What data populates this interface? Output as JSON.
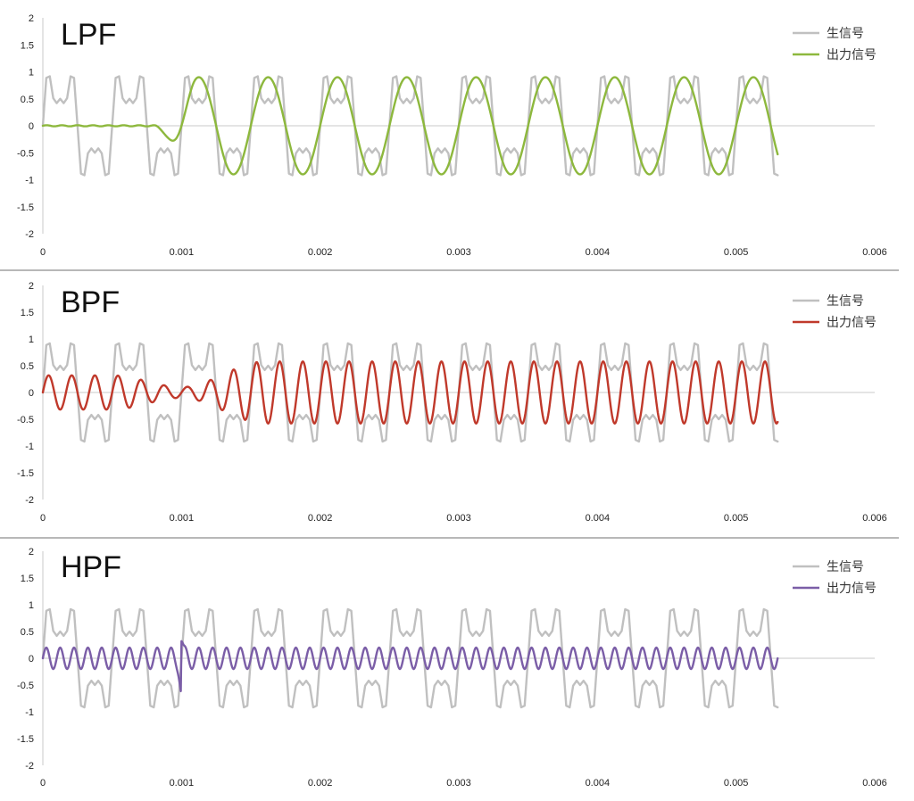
{
  "chart_data": [
    {
      "type": "line",
      "title": "LPF",
      "xlim": [
        0,
        0.006
      ],
      "ylim": [
        -2,
        2
      ],
      "x_ticks": [
        "0",
        "0.001",
        "0.002",
        "0.003",
        "0.004",
        "0.005",
        "0.006"
      ],
      "y_ticks": [
        "2",
        "1.5",
        "1",
        "0.5",
        "0",
        "-0.5",
        "-1",
        "-1.5",
        "-2"
      ],
      "legend_position": "top-right",
      "series": [
        {
          "name": "生信号",
          "color": "#c0c0c0",
          "kind": "raw",
          "description_values": {
            "x_start": 0,
            "x_end": 0.0053,
            "components": [
              {
                "freq_hz": 2000,
                "amp": 0.75
              },
              {
                "freq_hz": 6000,
                "amp": 0.5
              },
              {
                "freq_hz": 10000,
                "amp": 0.25
              }
            ]
          }
        },
        {
          "name": "出力信号",
          "color": "#8db83d",
          "kind": "output",
          "description_values": {
            "x_start": 0,
            "x_end": 0.0053,
            "freq_hz": 2000,
            "steady_amp": 0.9,
            "settle_start_x": 0.0008,
            "settle_end_x": 0.0011
          }
        }
      ]
    },
    {
      "type": "line",
      "title": "BPF",
      "xlim": [
        0,
        0.006
      ],
      "ylim": [
        -2,
        2
      ],
      "x_ticks": [
        "0",
        "0.001",
        "0.002",
        "0.003",
        "0.004",
        "0.005",
        "0.006"
      ],
      "y_ticks": [
        "2",
        "1.5",
        "1",
        "0.5",
        "0",
        "-0.5",
        "-1",
        "-1.5",
        "-2"
      ],
      "legend_position": "top-right",
      "series": [
        {
          "name": "生信号",
          "color": "#c0c0c0",
          "kind": "raw",
          "description_values": {
            "x_start": 0,
            "x_end": 0.0053,
            "components": [
              {
                "freq_hz": 2000,
                "amp": 0.75
              },
              {
                "freq_hz": 6000,
                "amp": 0.5
              },
              {
                "freq_hz": 10000,
                "amp": 0.25
              }
            ]
          }
        },
        {
          "name": "出力信号",
          "color": "#c0392b",
          "kind": "output",
          "description_values": {
            "x_start": 0,
            "x_end": 0.0053,
            "freq_hz": 6000,
            "initial_amp": 0.32,
            "dip_amp": 0.1,
            "dip_x": 0.001,
            "steady_amp": 0.58,
            "settle_end_x": 0.0016
          }
        }
      ]
    },
    {
      "type": "line",
      "title": "HPF",
      "xlim": [
        0,
        0.006
      ],
      "ylim": [
        -2,
        2
      ],
      "x_ticks": [
        "0",
        "0.001",
        "0.002",
        "0.003",
        "0.004",
        "0.005",
        "0.006"
      ],
      "y_ticks": [
        "2",
        "1.5",
        "1",
        "0.5",
        "0",
        "-0.5",
        "-1",
        "-1.5",
        "-2"
      ],
      "legend_position": "top-right",
      "series": [
        {
          "name": "生信号",
          "color": "#c0c0c0",
          "kind": "raw",
          "description_values": {
            "x_start": 0,
            "x_end": 0.0053,
            "components": [
              {
                "freq_hz": 2000,
                "amp": 0.75
              },
              {
                "freq_hz": 6000,
                "amp": 0.5
              },
              {
                "freq_hz": 10000,
                "amp": 0.25
              }
            ]
          }
        },
        {
          "name": "出力信号",
          "color": "#7b5ea7",
          "kind": "output",
          "description_values": {
            "x_start": 0,
            "x_end": 0.0053,
            "freq_hz": 10000,
            "steady_amp": 0.2,
            "spike_x": 0.001,
            "spike_min": -0.65,
            "spike_max": 0.32
          }
        }
      ]
    }
  ]
}
